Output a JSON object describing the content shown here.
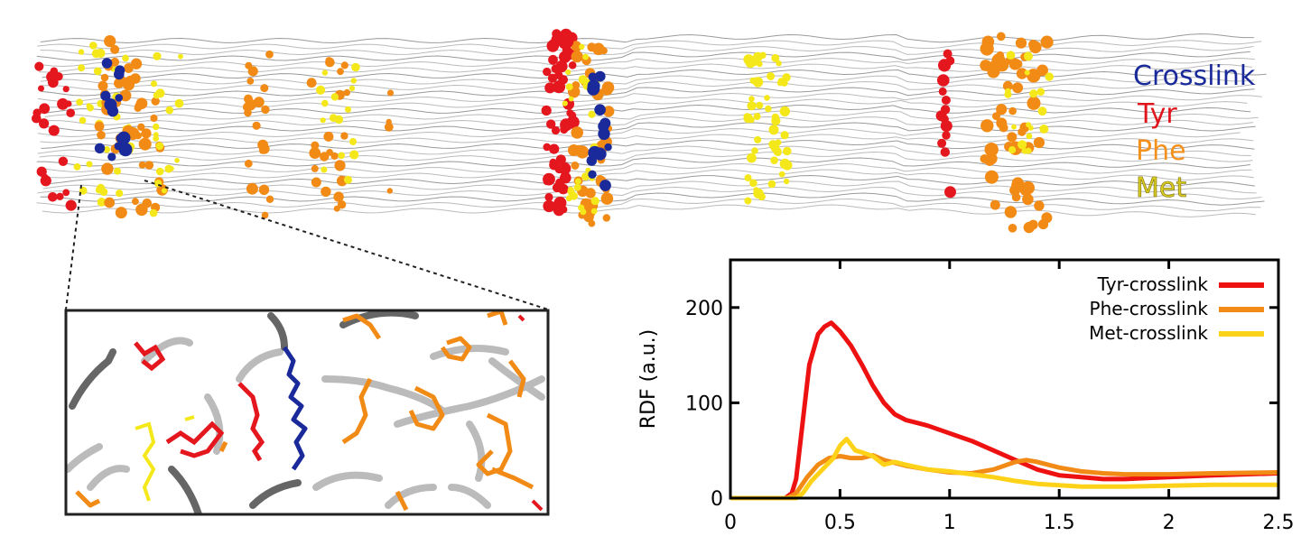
{
  "structure_legend": {
    "items": [
      {
        "label": "Crosslink",
        "color": "#1a2a9a"
      },
      {
        "label": "Tyr",
        "color": "#e0161d"
      },
      {
        "label": "Phe",
        "color": "#f4901c"
      },
      {
        "label": "Met",
        "color": "#d8cc24"
      }
    ]
  },
  "colors": {
    "crosslink": "#1a2a9a",
    "tyr": "#e5171e",
    "phe": "#f28a16",
    "met": "#f5e81a",
    "backbone": "#bbbbbb",
    "backbone_dark": "#666666"
  },
  "chart_data": {
    "type": "line",
    "ylabel": "RDF (a.u.)",
    "xlabel": "",
    "xlim": [
      0,
      2.5
    ],
    "ylim": [
      0,
      250
    ],
    "xticks": [
      0,
      0.5,
      1,
      1.5,
      2,
      2.5
    ],
    "xtick_labels": [
      "0",
      "0.5",
      "1",
      "1.5",
      "2",
      "2.5"
    ],
    "yticks": [
      0,
      100,
      200
    ],
    "ytick_labels": [
      "0",
      "100",
      "200"
    ],
    "legend_position": "top-right",
    "grid": false,
    "series": [
      {
        "name": "Tyr-crosslink",
        "color": "#ee1111",
        "x": [
          0,
          0.25,
          0.28,
          0.3,
          0.33,
          0.36,
          0.4,
          0.43,
          0.46,
          0.5,
          0.55,
          0.6,
          0.65,
          0.7,
          0.75,
          0.8,
          0.9,
          1.0,
          1.1,
          1.2,
          1.3,
          1.4,
          1.5,
          1.6,
          1.7,
          1.8,
          1.9,
          2.0,
          2.2,
          2.5
        ],
        "y": [
          0,
          0,
          5,
          20,
          80,
          140,
          172,
          180,
          184,
          175,
          160,
          140,
          118,
          100,
          88,
          82,
          76,
          68,
          60,
          50,
          40,
          30,
          24,
          22,
          20,
          20,
          21,
          22,
          24,
          26
        ]
      },
      {
        "name": "Phe-crosslink",
        "color": "#f28a16",
        "x": [
          0,
          0.26,
          0.3,
          0.35,
          0.4,
          0.45,
          0.5,
          0.55,
          0.6,
          0.65,
          0.7,
          0.8,
          0.9,
          1.0,
          1.1,
          1.2,
          1.3,
          1.35,
          1.4,
          1.5,
          1.6,
          1.7,
          1.8,
          2.0,
          2.2,
          2.5
        ],
        "y": [
          0,
          0,
          5,
          22,
          35,
          42,
          44,
          42,
          42,
          45,
          40,
          34,
          30,
          27,
          26,
          30,
          38,
          40,
          38,
          32,
          28,
          26,
          25,
          25,
          26,
          27
        ]
      },
      {
        "name": "Met-crosslink",
        "color": "#ffd21a",
        "x": [
          0,
          0.3,
          0.33,
          0.37,
          0.42,
          0.47,
          0.5,
          0.53,
          0.57,
          0.6,
          0.65,
          0.7,
          0.75,
          0.8,
          0.9,
          1.0,
          1.1,
          1.2,
          1.3,
          1.4,
          1.6,
          1.8,
          2.0,
          2.2,
          2.5
        ],
        "y": [
          0,
          0,
          5,
          18,
          30,
          42,
          55,
          62,
          50,
          48,
          44,
          35,
          38,
          35,
          30,
          28,
          25,
          22,
          18,
          15,
          12,
          12,
          13,
          14,
          14
        ]
      }
    ]
  }
}
